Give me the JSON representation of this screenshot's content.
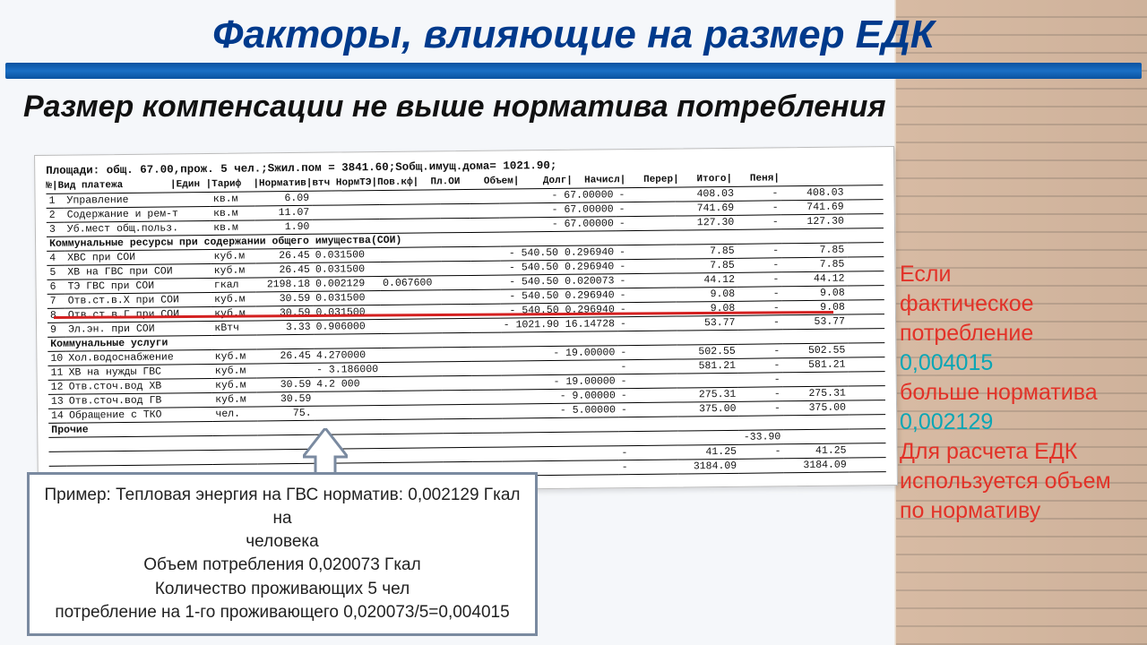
{
  "title": "Факторы, влияющие на размер ЕДК",
  "subtitle": "Размер компенсации не выше норматива потребления",
  "doc": {
    "header": "Площади: общ. 67.00,прож. 5 чел.;Sжил.пом = 3841.60;Sобщ.имущ.дома= 1021.90;",
    "columns": "№|Вид платежа        |Един |Тариф  |Норматив|втч НормТЭ|Пов.кф|  Пл.ОИ    Объем|    Долг|  Начисл|   Перер|   Итого|   Пеня|",
    "rows": [
      {
        "n": "1",
        "name": "Управление",
        "unit": "кв.м",
        "tarif": "6.09",
        "norm": "",
        "vtch": "",
        "pk": "",
        "plvol": "- 67.00000",
        "dolg": "-",
        "nach": "408.03",
        "perer": "-",
        "itog": "408.03",
        "pen": ""
      },
      {
        "n": "2",
        "name": "Содержание и рем-т",
        "unit": "кв.м",
        "tarif": "11.07",
        "norm": "",
        "vtch": "",
        "pk": "",
        "plvol": "- 67.00000",
        "dolg": "-",
        "nach": "741.69",
        "perer": "-",
        "itog": "741.69",
        "pen": ""
      },
      {
        "n": "3",
        "name": "Уб.мест общ.польз.",
        "unit": "кв.м",
        "tarif": "1.90",
        "norm": "",
        "vtch": "",
        "pk": "",
        "plvol": "- 67.00000",
        "dolg": "-",
        "nach": "127.30",
        "perer": "-",
        "itog": "127.30",
        "pen": ""
      }
    ],
    "section1": "Коммунальные ресурсы при содержании общего имущества(СОИ)",
    "rows2": [
      {
        "n": "4",
        "name": "ХВС при СОИ",
        "unit": "куб.м",
        "tarif": "26.45",
        "norm": "0.031500",
        "vtch": "",
        "pk": "",
        "plvol": "- 540.50 0.296940",
        "dolg": "-",
        "nach": "7.85",
        "perer": "-",
        "itog": "7.85",
        "pen": ""
      },
      {
        "n": "5",
        "name": "ХВ на ГВС при СОИ",
        "unit": "куб.м",
        "tarif": "26.45",
        "norm": "0.031500",
        "vtch": "",
        "pk": "",
        "plvol": "- 540.50 0.296940",
        "dolg": "-",
        "nach": "7.85",
        "perer": "-",
        "itog": "7.85",
        "pen": ""
      },
      {
        "n": "6",
        "name": "ТЭ ГВС при СОИ",
        "unit": "гкал",
        "tarif": "2198.18",
        "norm": "0.002129",
        "vtch": "0.067600",
        "pk": "",
        "plvol": "- 540.50 0.020073",
        "dolg": "-",
        "nach": "44.12",
        "perer": "-",
        "itog": "44.12",
        "pen": ""
      },
      {
        "n": "7",
        "name": "Отв.ст.в.Х при СОИ",
        "unit": "куб.м",
        "tarif": "30.59",
        "norm": "0.031500",
        "vtch": "",
        "pk": "",
        "plvol": "- 540.50 0.296940",
        "dolg": "-",
        "nach": "9.08",
        "perer": "-",
        "itog": "9.08",
        "pen": ""
      },
      {
        "n": "8",
        "name": "Отв.ст.в.Г при СОИ",
        "unit": "куб.м",
        "tarif": "30.59",
        "norm": "0.031500",
        "vtch": "",
        "pk": "",
        "plvol": "- 540.50 0.296940",
        "dolg": "-",
        "nach": "9.08",
        "perer": "-",
        "itog": "9.08",
        "pen": ""
      },
      {
        "n": "9",
        "name": "Эл.эн. при СОИ",
        "unit": "кВтч",
        "tarif": "3.33",
        "norm": "0.906000",
        "vtch": "",
        "pk": "",
        "plvol": "- 1021.90 16.14728",
        "dolg": "-",
        "nach": "53.77",
        "perer": "-",
        "itog": "53.77",
        "pen": ""
      }
    ],
    "section2": "Коммунальные услуги",
    "rows3": [
      {
        "n": "10",
        "name": "Хол.водоснабжение",
        "unit": "куб.м",
        "tarif": "26.45",
        "norm": "4.270000",
        "vtch": "",
        "pk": "",
        "plvol": "- 19.00000",
        "dolg": "-",
        "nach": "502.55",
        "perer": "-",
        "itog": "502.55",
        "pen": ""
      },
      {
        "n": "11",
        "name": "ХВ на нужды ГВС",
        "unit": "куб.м",
        "tarif": "",
        "norm": "- 3.186000",
        "vtch": "",
        "pk": "",
        "plvol": "",
        "dolg": "-",
        "nach": "581.21",
        "perer": "-",
        "itog": "581.21",
        "pen": ""
      },
      {
        "n": "12",
        "name": "Отв.сточ.вод ХВ",
        "unit": "куб.м",
        "tarif": "30.59",
        "norm": "4.2   000",
        "vtch": "",
        "pk": "",
        "plvol": "- 19.00000",
        "dolg": "-",
        "nach": "",
        "perer": "-",
        "itog": "",
        "pen": ""
      },
      {
        "n": "13",
        "name": "Отв.сточ.вод ГВ",
        "unit": "куб.м",
        "tarif": "30.59",
        "norm": "",
        "vtch": "",
        "pk": "",
        "plvol": "- 9.00000",
        "dolg": "-",
        "nach": "275.31",
        "perer": "-",
        "itog": "275.31",
        "pen": ""
      },
      {
        "n": "14",
        "name": "Обращение с ТКО",
        "unit": "чел.",
        "tarif": "75.",
        "norm": "",
        "vtch": "",
        "pk": "",
        "plvol": "- 5.00000",
        "dolg": "-",
        "nach": "375.00",
        "perer": "-",
        "itog": "375.00",
        "pen": ""
      }
    ],
    "section3": "Прочие",
    "tail": [
      {
        "plvol": "",
        "dolg": "",
        "nach": "",
        "perer": "-33.90",
        "itog": "",
        "pen": ""
      },
      {
        "plvol": "",
        "dolg": "-",
        "nach": "41.25",
        "perer": "-",
        "itog": "41.25",
        "pen": ""
      },
      {
        "plvol": "",
        "dolg": "-",
        "nach": "3184.09",
        "perer": "",
        "itog": "3184.09",
        "pen": ""
      }
    ]
  },
  "side": {
    "l1": "Если",
    "l2": "фактическое",
    "l3": "потребление",
    "v1": "0,004015",
    "l4": "больше норматива",
    "v2": "0,002129",
    "l5": "Для расчета ЕДК",
    "l6": "используется объем",
    "l7": "по нормативу"
  },
  "callout": {
    "l1": "Пример: Тепловая энергия на ГВС норматив: 0,002129 Гкал на",
    "l2": "человека",
    "l3": "Объем потребления 0,020073 Гкал",
    "l4": "Количество проживающих 5 чел",
    "l5": "потребление на 1-го проживающего 0,020073/5=0,004015"
  },
  "colors": {
    "title": "#003a8c",
    "accent_red": "#e23228",
    "accent_teal": "#0aa6b5",
    "redline": "#d42020",
    "callout_border": "#7a8aa0"
  }
}
